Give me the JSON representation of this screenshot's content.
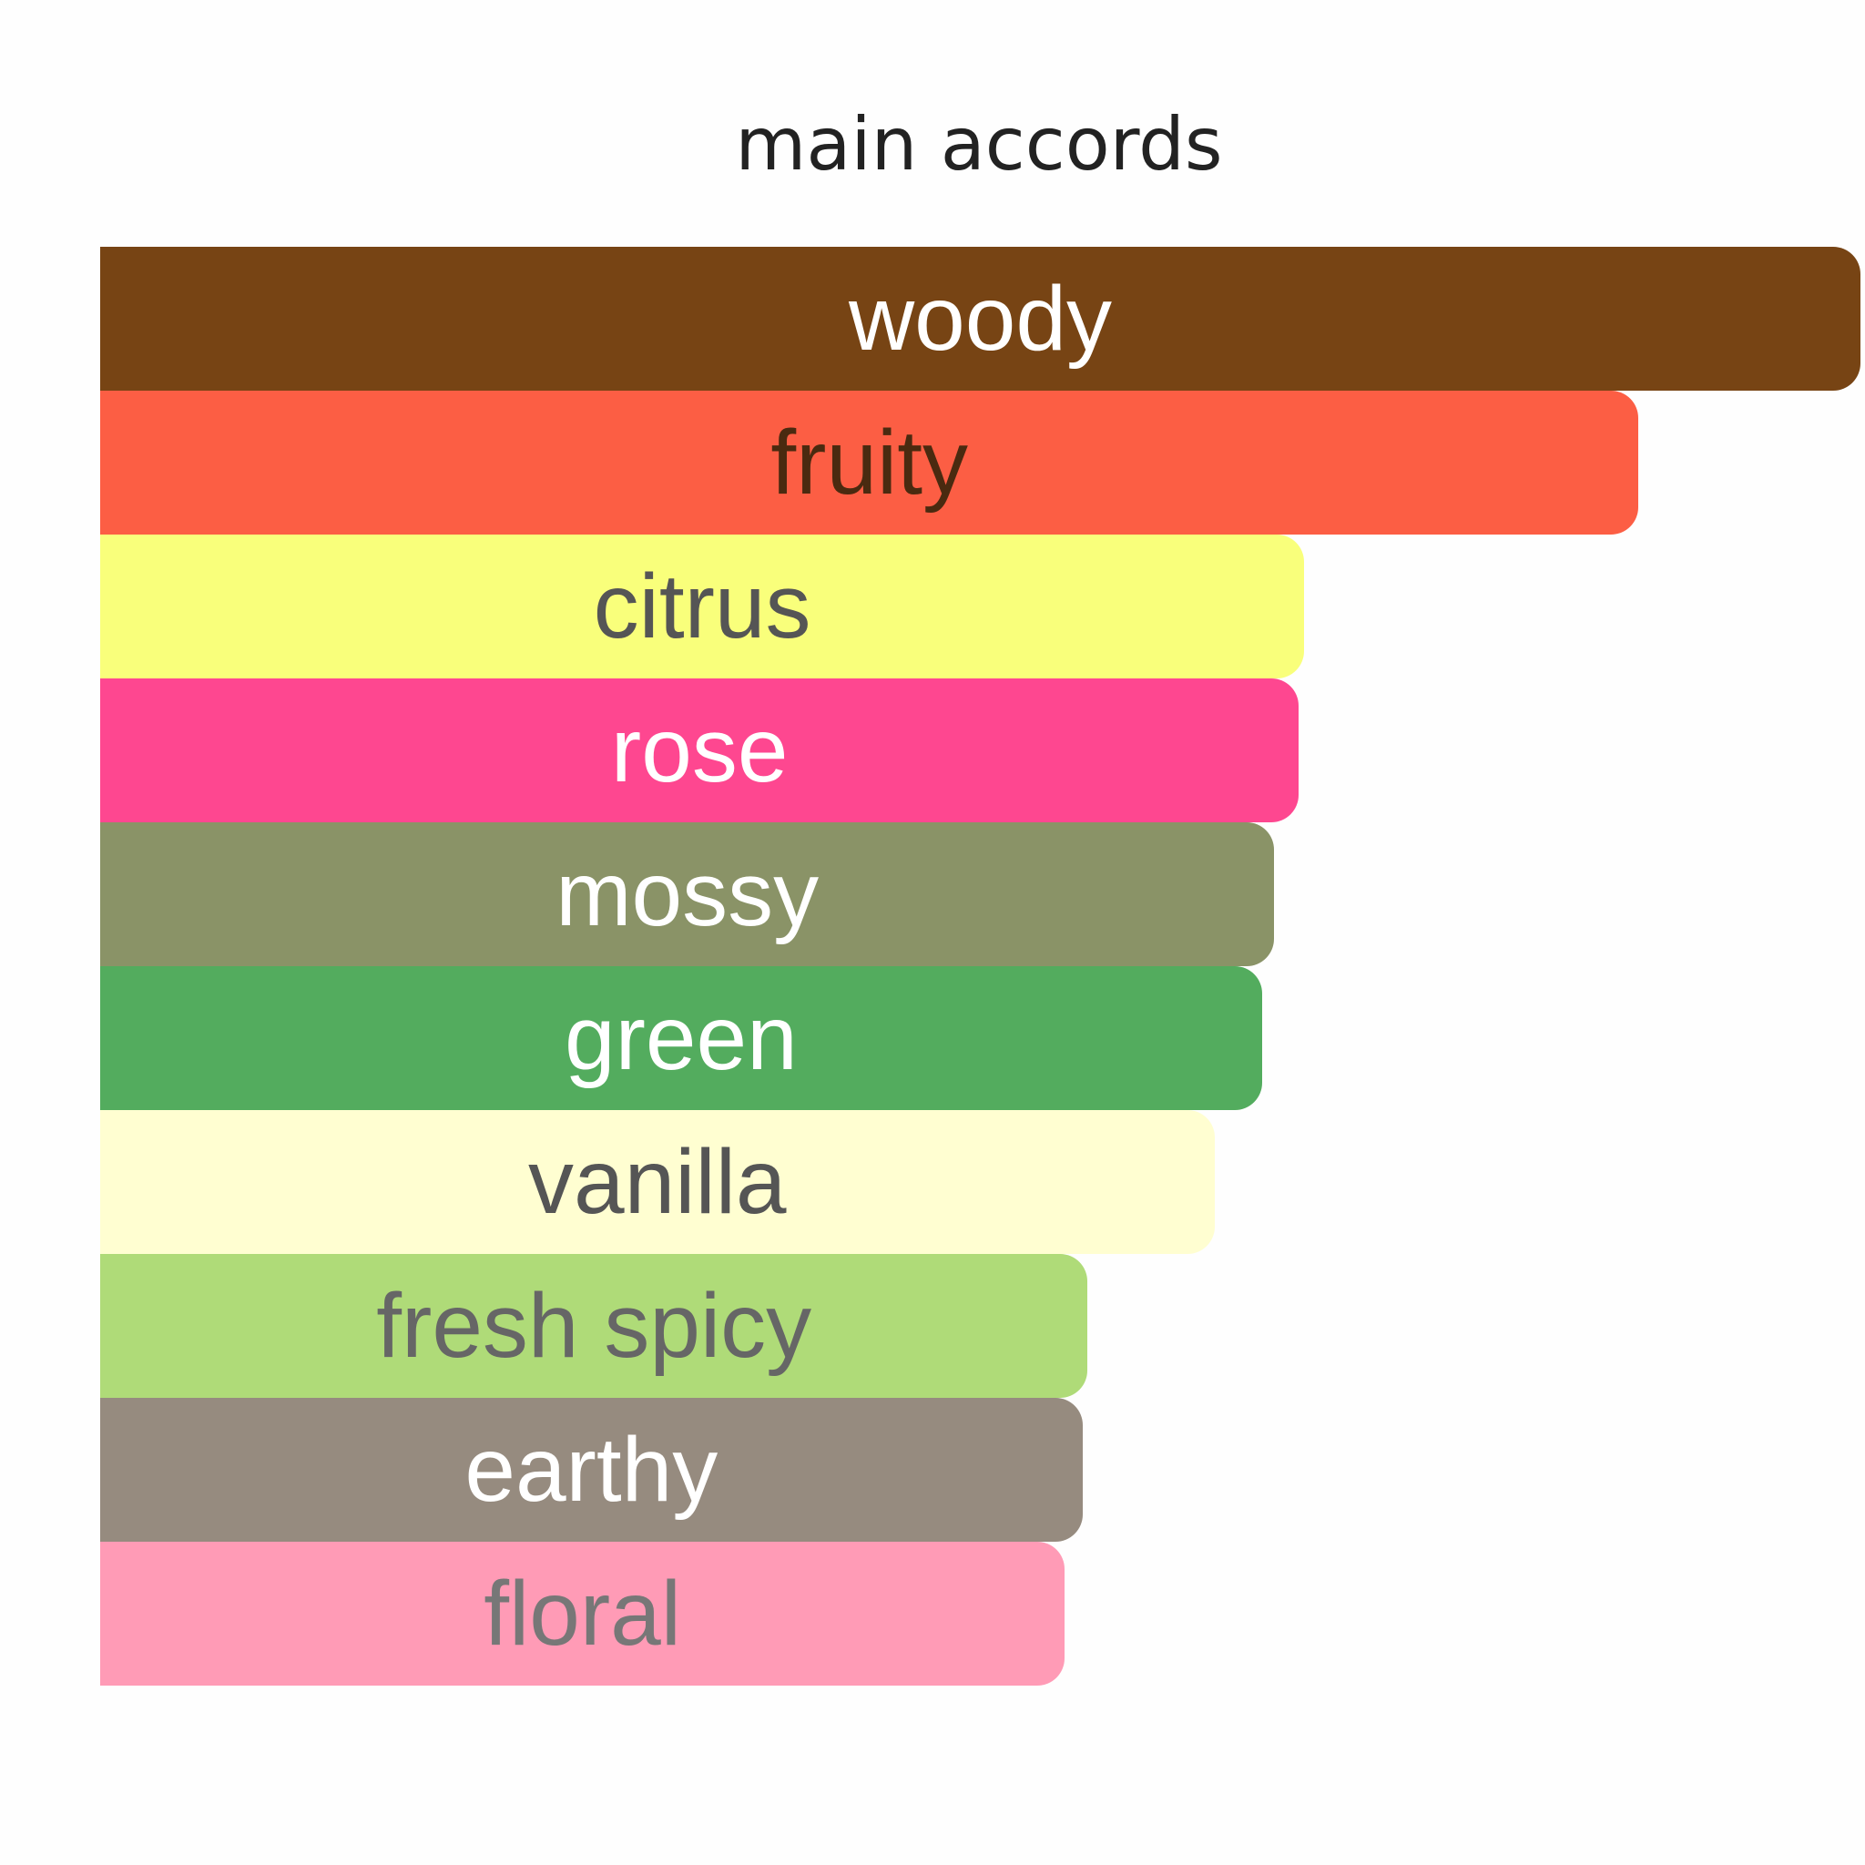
{
  "chart_data": {
    "type": "bar",
    "orientation": "horizontal",
    "title": "main accords",
    "xlabel": "",
    "ylabel": "",
    "grid": false,
    "categories": [
      "woody",
      "fruity",
      "citrus",
      "rose",
      "mossy",
      "green",
      "vanilla",
      "fresh spicy",
      "earthy",
      "floral"
    ],
    "values": [
      100,
      87.4,
      68.4,
      68.1,
      66.7,
      66.0,
      63.3,
      56.1,
      55.8,
      54.8
    ],
    "colors": [
      "#774414",
      "#FC5E44",
      "#F9FF7B",
      "#FE4790",
      "#8A9367",
      "#53AC5E",
      "#FFFED1",
      "#AFDB78",
      "#968B7F",
      "#FF9BB6"
    ],
    "label_colors": [
      "#ffffff",
      "#4a2a10",
      "#555555",
      "#ffffff",
      "#ffffff",
      "#ffffff",
      "#555555",
      "#666666",
      "#ffffff",
      "#777777"
    ]
  }
}
